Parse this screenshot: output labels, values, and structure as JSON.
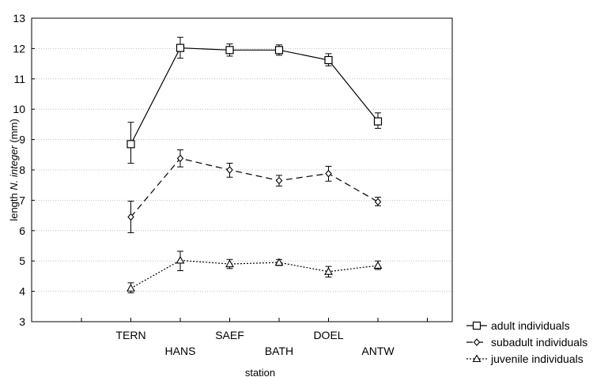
{
  "chart_data": {
    "type": "line",
    "xlabel": "station",
    "ylabel_prefix": "length ",
    "ylabel_species": "N. integer",
    "ylabel_suffix": " (mm)",
    "categories": [
      "TERN",
      "HANS",
      "SAEF",
      "BATH",
      "DOEL",
      "ANTW"
    ],
    "ylim": [
      3,
      13
    ],
    "yticks": [
      3,
      4,
      5,
      6,
      7,
      8,
      9,
      10,
      11,
      12,
      13
    ],
    "grid": true,
    "legend_position": "bottom-right",
    "series": [
      {
        "name": "adult individuals",
        "marker": "square",
        "dash": "solid",
        "values": [
          8.85,
          12.02,
          11.95,
          11.95,
          11.62,
          9.6
        ],
        "err_low": [
          8.22,
          11.68,
          11.75,
          11.78,
          11.43,
          9.37
        ],
        "err_high": [
          9.57,
          12.37,
          12.15,
          12.12,
          11.83,
          9.88
        ]
      },
      {
        "name": "subadult individuals",
        "marker": "diamond",
        "dash": "dashed",
        "values": [
          6.45,
          8.38,
          8.0,
          7.65,
          7.88,
          6.95
        ],
        "err_low": [
          5.93,
          8.1,
          7.76,
          7.47,
          7.63,
          6.82
        ],
        "err_high": [
          6.97,
          8.66,
          8.22,
          7.82,
          8.12,
          7.1
        ]
      },
      {
        "name": "juvenile individuals",
        "marker": "triangle",
        "dash": "dotted",
        "values": [
          4.1,
          5.02,
          4.9,
          4.95,
          4.65,
          4.85
        ],
        "err_low": [
          3.95,
          4.68,
          4.75,
          4.85,
          4.47,
          4.72
        ],
        "err_high": [
          4.28,
          5.32,
          5.05,
          5.05,
          4.82,
          5.0
        ]
      }
    ]
  }
}
